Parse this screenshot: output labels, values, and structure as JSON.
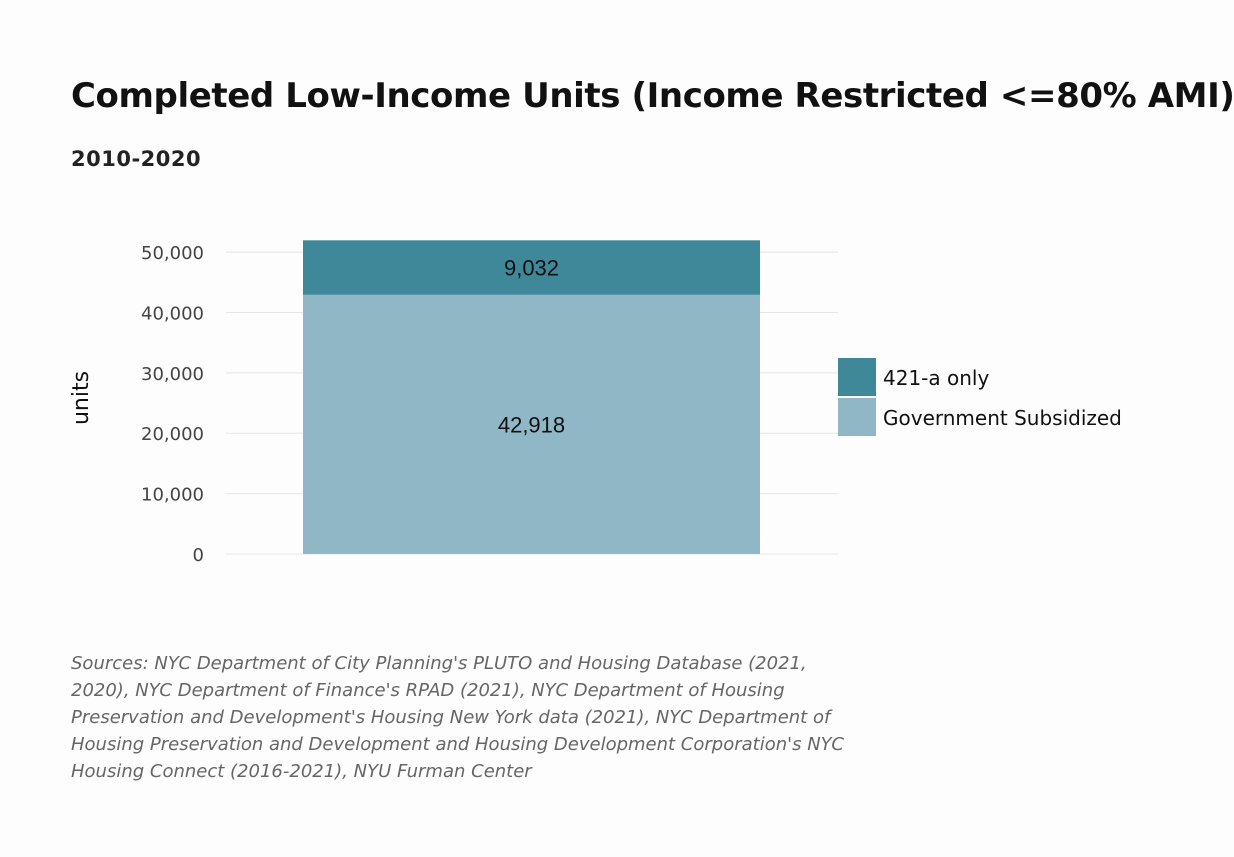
{
  "chart_data": {
    "type": "bar",
    "stacked": true,
    "title": "Completed Low-Income Units (Income Restricted <=80% AMI)",
    "subtitle": "2010-2020",
    "ylabel": "units",
    "ylim": [
      0,
      52000
    ],
    "yticks": [
      0,
      10000,
      20000,
      30000,
      40000,
      50000
    ],
    "ytick_labels": [
      "0",
      "10,000",
      "20,000",
      "30,000",
      "40,000",
      "50,000"
    ],
    "grid": true,
    "legend_position": "right",
    "series": [
      {
        "name": "Government Subsidized",
        "value": 42918,
        "label": "42,918",
        "color": "#8fb7c5"
      },
      {
        "name": "421-a only",
        "value": 9032,
        "label": "9,032",
        "color": "#3f8899"
      }
    ],
    "legend_order": [
      "421-a only",
      "Government Subsidized"
    ]
  },
  "sources": "Sources: NYC Department of City Planning's PLUTO and Housing Database (2021, 2020), NYC Department of Finance's RPAD (2021), NYC Department of Housing Preservation and Development's Housing New York data (2021), NYC Department of Housing Preservation and Development and Housing Development Corporation's NYC Housing Connect (2016-2021), NYU Furman Center"
}
